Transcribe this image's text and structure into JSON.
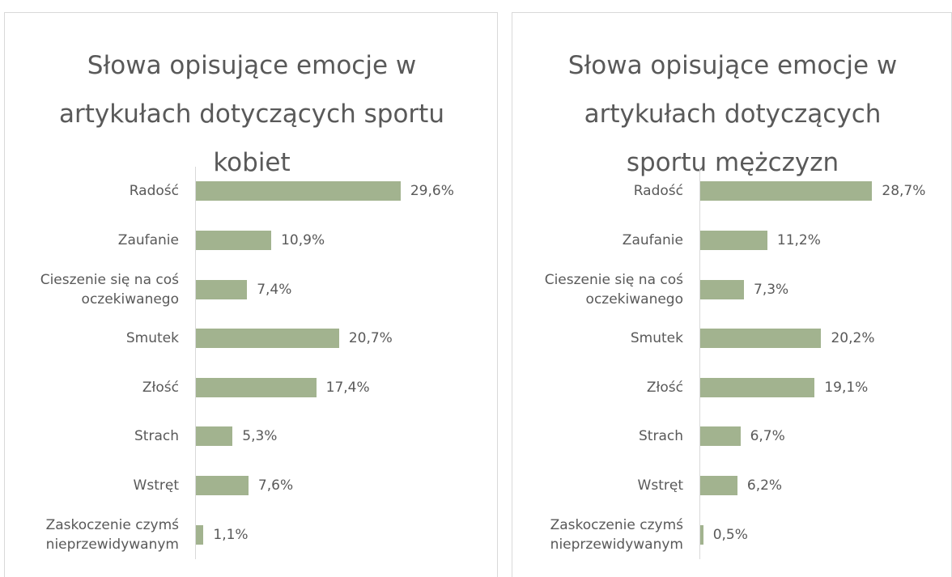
{
  "chart_data": [
    {
      "type": "bar",
      "orientation": "horizontal",
      "title": "Słowa opisujące emocje w artykułach dotyczących sportu kobiet",
      "categories": [
        "Radość",
        "Zaufanie",
        "Cieszenie się na coś oczekiwanego",
        "Smutek",
        "Złość",
        "Strach",
        "Wstręt",
        "Zaskoczenie czymś nieprzewidywanym"
      ],
      "values": [
        29.6,
        10.9,
        7.4,
        20.7,
        17.4,
        5.3,
        7.6,
        1.1
      ],
      "value_labels": [
        "29,6%",
        "10,9%",
        "7,4%",
        "20,7%",
        "17,4%",
        "5,3%",
        "7,6%",
        "1,1%"
      ],
      "color": "#a2b38f",
      "xlim": [
        0,
        35
      ]
    },
    {
      "type": "bar",
      "orientation": "horizontal",
      "title": "Słowa opisujące emocje w artykułach dotyczących sportu mężczyzn",
      "categories": [
        "Radość",
        "Zaufanie",
        "Cieszenie się na coś oczekiwanego",
        "Smutek",
        "Złość",
        "Strach",
        "Wstręt",
        "Zaskoczenie czymś nieprzewidywanym"
      ],
      "values": [
        28.7,
        11.2,
        7.3,
        20.2,
        19.1,
        6.7,
        6.2,
        0.5
      ],
      "value_labels": [
        "28,7%",
        "11,2%",
        "7,3%",
        "20,2%",
        "19,1%",
        "6,7%",
        "6,2%",
        "0,5%"
      ],
      "color": "#a2b38f",
      "xlim": [
        0,
        35
      ]
    }
  ]
}
